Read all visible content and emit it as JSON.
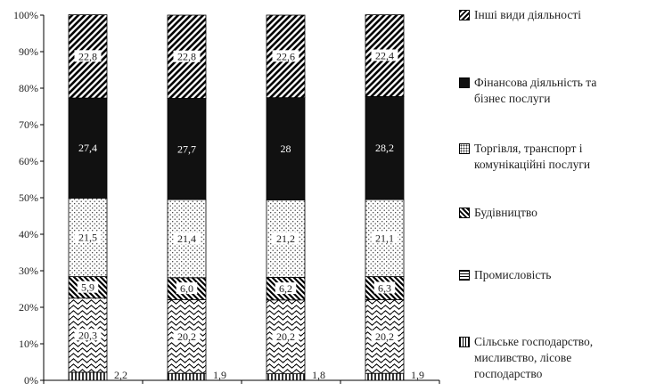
{
  "chart_data": {
    "type": "bar",
    "stacked": true,
    "ylim": [
      0,
      100
    ],
    "yticks": [
      "0%",
      "10%",
      "20%",
      "30%",
      "40%",
      "50%",
      "60%",
      "70%",
      "80%",
      "90%",
      "100%"
    ],
    "categories": [
      "",
      "",
      "",
      ""
    ],
    "grid": false,
    "legend_position": "right",
    "series": [
      {
        "name": "Сільське господарство, мисливство, лісове господарство",
        "pattern": "vertical-lines",
        "color": "#000000",
        "values": [
          2.2,
          1.9,
          1.8,
          1.9
        ]
      },
      {
        "name": "Промисловість",
        "pattern": "waves",
        "color": "#000000",
        "values": [
          20.3,
          20.2,
          20.2,
          20.2
        ]
      },
      {
        "name": "Будівництво",
        "pattern": "diagonal-back",
        "color": "#000000",
        "values": [
          5.9,
          6.0,
          6.2,
          6.3
        ]
      },
      {
        "name": "Торгівля, транспорт і комунікаційні послуги",
        "pattern": "dots",
        "color": "#000000",
        "values": [
          21.5,
          21.4,
          21.2,
          21.1
        ]
      },
      {
        "name": "Фінансова діяльність та бізнес послуги",
        "pattern": "solid",
        "color": "#111111",
        "values": [
          27.4,
          27.7,
          28,
          28.2
        ]
      },
      {
        "name": "Інші види діяльності",
        "pattern": "diagonal-forward",
        "color": "#000000",
        "values": [
          22.8,
          22.8,
          22.6,
          22.4
        ]
      }
    ],
    "data_labels": [
      [
        "2,2",
        "20,3",
        "5,9",
        "21,5",
        "27,4",
        "22,8"
      ],
      [
        "1,9",
        "20,2",
        "6,0",
        "21,4",
        "27,7",
        "22,8"
      ],
      [
        "1,8",
        "20,2",
        "6,2",
        "21,2",
        "28",
        "22,6"
      ],
      [
        "1,9",
        "20,2",
        "6,3",
        "21,1",
        "28,2",
        "22,4"
      ]
    ]
  },
  "legend": {
    "items": [
      {
        "lines": [
          "Інші види діяльності"
        ],
        "pattern": "diagonal-forward"
      },
      {
        "lines": [
          "Фінансова діяльність та",
          "бізнес послуги"
        ],
        "pattern": "solid"
      },
      {
        "lines": [
          "Торгівля, транспорт і",
          "комунікаційні послуги"
        ],
        "pattern": "dots"
      },
      {
        "lines": [
          "Будівництво"
        ],
        "pattern": "diagonal-back"
      },
      {
        "lines": [
          "Промисловість"
        ],
        "pattern": "waves"
      },
      {
        "lines": [
          "Сільське господарство,",
          "мисливство, лісове",
          "господарство"
        ],
        "pattern": "vertical-lines"
      }
    ]
  }
}
